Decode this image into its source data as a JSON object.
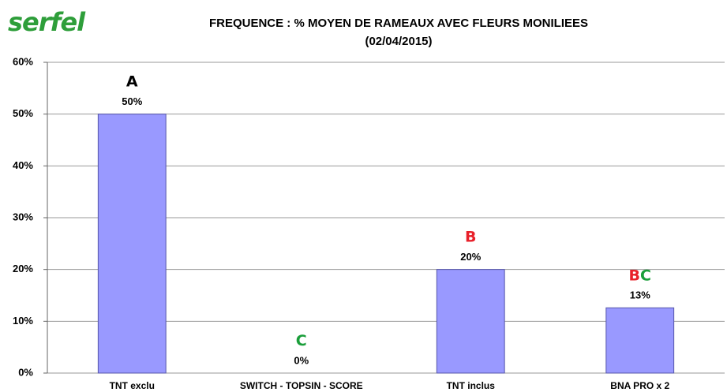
{
  "logo": "serfel",
  "chart_data": {
    "type": "bar",
    "title": "FREQUENCE : % MOYEN DE RAMEAUX AVEC FLEURS MONILIEES",
    "subtitle": "(02/04/2015)",
    "categories": [
      "TNT exclu",
      "SWITCH - TOPSIN - SCORE",
      "TNT inclus",
      "BNA PRO x 2"
    ],
    "values": [
      50,
      0,
      20,
      12.6
    ],
    "value_labels": [
      "50%",
      "0%",
      "20%",
      "13%"
    ],
    "significance": [
      [
        {
          "text": "A",
          "color": "#000000"
        }
      ],
      [
        {
          "text": "C",
          "color": "#1a9e3a"
        }
      ],
      [
        {
          "text": "B",
          "color": "#e8202a"
        }
      ],
      [
        {
          "text": "B",
          "color": "#e8202a"
        },
        {
          "text": "C",
          "color": "#1a9e3a"
        }
      ]
    ],
    "color": "#9999ff",
    "ylim": [
      0,
      60
    ],
    "yticks": [
      {
        "value": 0,
        "label": "0%"
      },
      {
        "value": 10,
        "label": "10%"
      },
      {
        "value": 20,
        "label": "20%"
      },
      {
        "value": 30,
        "label": "30%"
      },
      {
        "value": 40,
        "label": "40%"
      },
      {
        "value": 50,
        "label": "50%"
      },
      {
        "value": 60,
        "label": "60%"
      }
    ],
    "grid": true
  }
}
